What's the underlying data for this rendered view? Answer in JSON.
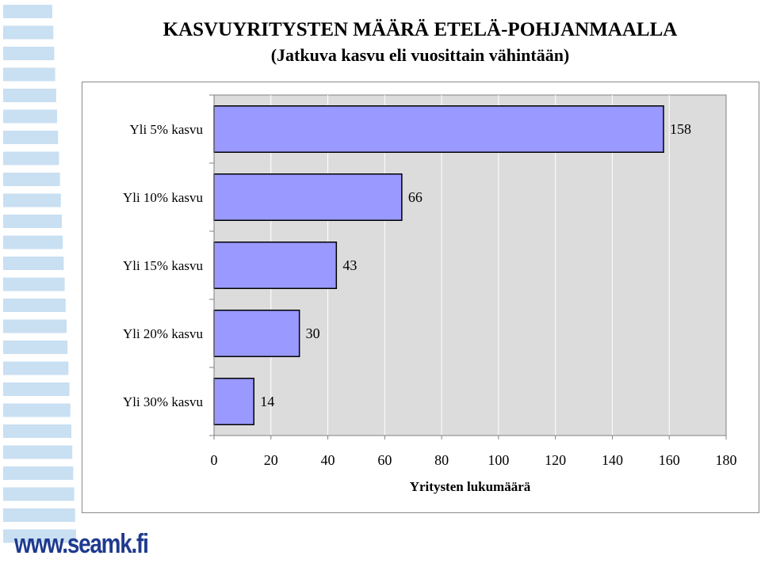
{
  "chart_data": {
    "type": "bar",
    "orientation": "horizontal",
    "title": "KASVUYRITYSTEN MÄÄRÄ ETELÄ-POHJANMAALLA",
    "subtitle": "(Jatkuva kasvu eli vuosittain vähintään)",
    "categories": [
      "Yli 5% kasvu",
      "Yli 10% kasvu",
      "Yli 15% kasvu",
      "Yli 20% kasvu",
      "Yli 30% kasvu"
    ],
    "values": [
      158,
      66,
      43,
      30,
      14
    ],
    "data_labels": [
      "158",
      "66",
      "43",
      "30",
      "14"
    ],
    "xlabel": "Yritysten lukumäärä",
    "ylabel": "",
    "xlim": [
      0,
      180
    ],
    "x_ticks": [
      "0",
      "20",
      "40",
      "60",
      "80",
      "100",
      "120",
      "140",
      "160",
      "180"
    ],
    "grid": "vertical",
    "legend": "none",
    "colors": {
      "bar": "#9999ff",
      "plot_bg": "#dcdcdc",
      "grid": "#ffffff"
    }
  },
  "brand": {
    "text": "www.seamk.fi",
    "color": "#1f3a8f"
  },
  "decor": {
    "stripe_color": "#c9dff2"
  }
}
